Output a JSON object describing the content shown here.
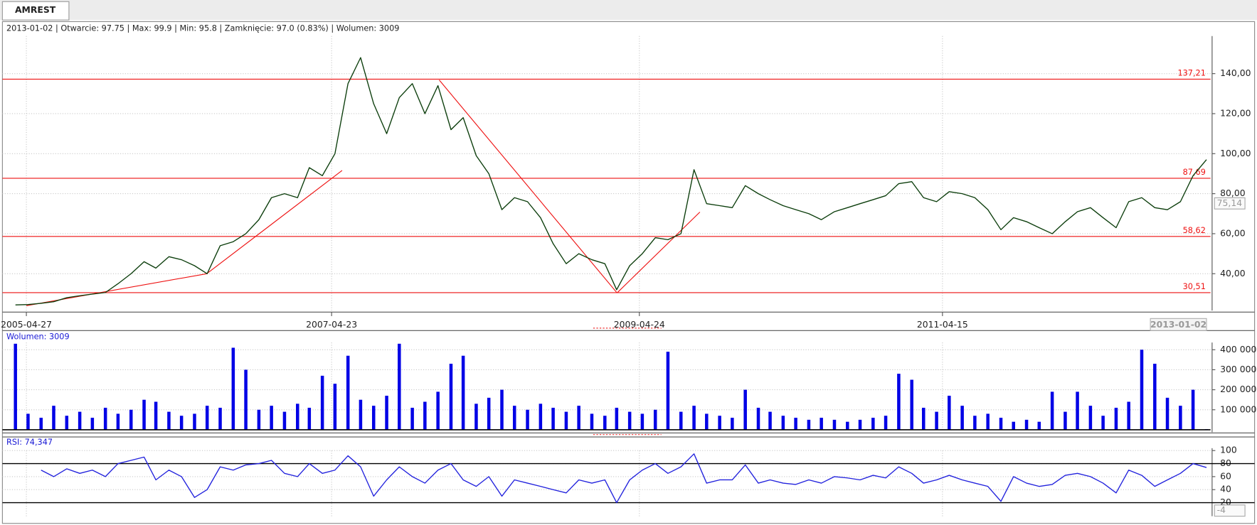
{
  "tab": "AMREST",
  "chart_data": [
    {
      "type": "line",
      "info": "2013-01-02 | Otwarcie: 97.75 | Max: 99.9 | Min: 95.8 | Zamknięcie: 97.0 (0.83%)  | Wolumen: 3009",
      "x": [
        "2005-04",
        "2005-05",
        "2005-06",
        "2005-07",
        "2005-08",
        "2005-09",
        "2005-10",
        "2005-11",
        "2005-12",
        "2006-01",
        "2006-02",
        "2006-03",
        "2006-04",
        "2006-05",
        "2006-06",
        "2006-07",
        "2006-08",
        "2006-09",
        "2006-10",
        "2006-11",
        "2006-12",
        "2007-01",
        "2007-02",
        "2007-03",
        "2007-04",
        "2007-05",
        "2007-06",
        "2007-07",
        "2007-08",
        "2007-09",
        "2007-10",
        "2007-11",
        "2007-12",
        "2008-01",
        "2008-02",
        "2008-03",
        "2008-04",
        "2008-05",
        "2008-06",
        "2008-07",
        "2008-08",
        "2008-09",
        "2008-10",
        "2008-11",
        "2008-12",
        "2009-01",
        "2009-02",
        "2009-03",
        "2009-04",
        "2009-05",
        "2009-06",
        "2009-07",
        "2009-08",
        "2009-09",
        "2009-10",
        "2009-11",
        "2009-12",
        "2010-01",
        "2010-02",
        "2010-03",
        "2010-04",
        "2010-05",
        "2010-06",
        "2010-07",
        "2010-08",
        "2010-09",
        "2010-10",
        "2010-11",
        "2010-12",
        "2011-01",
        "2011-02",
        "2011-03",
        "2011-04",
        "2011-05",
        "2011-06",
        "2011-07",
        "2011-08",
        "2011-09",
        "2011-10",
        "2011-11",
        "2011-12",
        "2012-01",
        "2012-02",
        "2012-03",
        "2012-04",
        "2012-05",
        "2012-06",
        "2012-07",
        "2012-08",
        "2012-09",
        "2012-10",
        "2012-11",
        "2012-12",
        "2013-01-02"
      ],
      "series": [
        {
          "color": "#0b3d0b",
          "values": [
            24.4,
            24.6,
            25.2,
            26,
            28,
            29,
            29.8,
            30.6,
            35,
            40,
            46,
            42.8,
            48.5,
            47,
            44,
            40,
            54,
            56,
            60,
            67,
            78,
            80,
            78,
            93,
            89,
            100,
            135,
            148,
            125,
            110,
            128,
            135,
            120,
            134,
            112,
            118,
            99,
            90,
            72,
            78,
            76,
            68,
            55,
            45,
            50,
            47,
            45,
            32,
            44,
            50,
            58,
            57,
            60,
            92,
            75,
            74,
            73,
            84,
            80,
            77,
            74,
            72,
            70,
            67,
            71,
            73,
            75,
            77,
            79,
            85,
            86,
            78,
            76,
            81,
            80,
            78,
            72,
            62,
            68,
            66,
            63,
            60,
            66,
            71,
            73,
            68,
            63,
            76,
            78,
            73,
            72,
            76,
            89,
            97
          ]
        }
      ],
      "xlim": [
        "2005-03-01",
        "2013-01-02"
      ],
      "xticks": [
        "2005-04-27",
        "2007-04-23",
        "2009-04-24",
        "2011-04-15"
      ],
      "ylim": [
        20.8,
        165.6
      ],
      "yticks": [
        {
          "value": 40,
          "label": "40,00"
        },
        {
          "value": 60,
          "label": "60,00"
        },
        {
          "value": 80,
          "label": "80,00"
        },
        {
          "value": 100,
          "label": "100,00"
        },
        {
          "value": 120,
          "label": "120,00"
        },
        {
          "value": 140,
          "label": "140,00"
        }
      ],
      "grid": true,
      "levels": [
        {
          "value": 137.21,
          "label": "137,21"
        },
        {
          "value": 87.69,
          "label": "87,69"
        },
        {
          "value": 58.62,
          "label": "58,62"
        },
        {
          "value": 30.51,
          "label": "30,51"
        }
      ],
      "level_color": "#ee1111",
      "trendlines": [
        {
          "x": [
            "2005-04-27",
            "2006-06-30"
          ],
          "y": [
            24,
            40
          ]
        },
        {
          "x": [
            "2006-06-30",
            "2007-05-18"
          ],
          "y": [
            40,
            91.6
          ]
        },
        {
          "x": [
            "2008-01-04",
            "2009-03-02"
          ],
          "y": [
            136.8,
            30.4
          ]
        },
        {
          "x": [
            "2009-03-02",
            "2009-09-15"
          ],
          "y": [
            30.4,
            70.8
          ]
        }
      ],
      "cursor": {
        "value": 75.14,
        "label": "75,14"
      }
    },
    {
      "type": "bar",
      "label": "Wolumen: 3009",
      "color": "#0000e6",
      "values": [
        430000,
        80000,
        60000,
        120000,
        70000,
        90000,
        60000,
        110000,
        80000,
        100000,
        150000,
        140000,
        90000,
        70000,
        80000,
        120000,
        110000,
        410000,
        300000,
        100000,
        120000,
        90000,
        130000,
        110000,
        270000,
        230000,
        370000,
        150000,
        120000,
        170000,
        430000,
        110000,
        140000,
        190000,
        330000,
        370000,
        130000,
        160000,
        200000,
        120000,
        100000,
        130000,
        110000,
        90000,
        120000,
        80000,
        70000,
        110000,
        90000,
        80000,
        100000,
        390000,
        90000,
        120000,
        80000,
        70000,
        60000,
        200000,
        110000,
        90000,
        70000,
        60000,
        50000,
        60000,
        50000,
        40000,
        50000,
        60000,
        70000,
        280000,
        250000,
        110000,
        90000,
        170000,
        120000,
        70000,
        80000,
        60000,
        40000,
        50000,
        40000,
        190000,
        90000,
        190000,
        120000,
        70000,
        110000,
        140000,
        400000,
        330000,
        160000,
        120000,
        200000,
        3009
      ],
      "ylim": [
        0,
        436000
      ],
      "yticks": [
        {
          "value": 100000,
          "label": "100 000"
        },
        {
          "value": 200000,
          "label": "200 000"
        },
        {
          "value": 300000,
          "label": "300 000"
        },
        {
          "value": 400000,
          "label": "400 000"
        }
      ],
      "grid": true
    },
    {
      "type": "line",
      "label": "RSI: 74,347",
      "series": [
        {
          "color": "#2222dd",
          "values": [
            null,
            null,
            70,
            60,
            72,
            65,
            70,
            60,
            80,
            85,
            90,
            55,
            70,
            60,
            28,
            40,
            75,
            70,
            78,
            80,
            85,
            65,
            60,
            80,
            65,
            70,
            92,
            75,
            30,
            55,
            75,
            60,
            50,
            70,
            80,
            55,
            45,
            60,
            30,
            55,
            50,
            45,
            40,
            35,
            55,
            50,
            55,
            20,
            55,
            70,
            80,
            65,
            75,
            95,
            50,
            55,
            55,
            78,
            50,
            55,
            50,
            48,
            55,
            50,
            60,
            58,
            55,
            62,
            58,
            75,
            65,
            50,
            55,
            62,
            55,
            50,
            45,
            22,
            60,
            50,
            45,
            48,
            62,
            65,
            60,
            50,
            35,
            70,
            62,
            45,
            55,
            65,
            80,
            74
          ]
        }
      ],
      "ylim": [
        -2,
        100
      ],
      "yticks": [
        20,
        40,
        60,
        80,
        100
      ],
      "levels": [
        20,
        80
      ],
      "grid": true,
      "cursor_label": "-4"
    }
  ]
}
